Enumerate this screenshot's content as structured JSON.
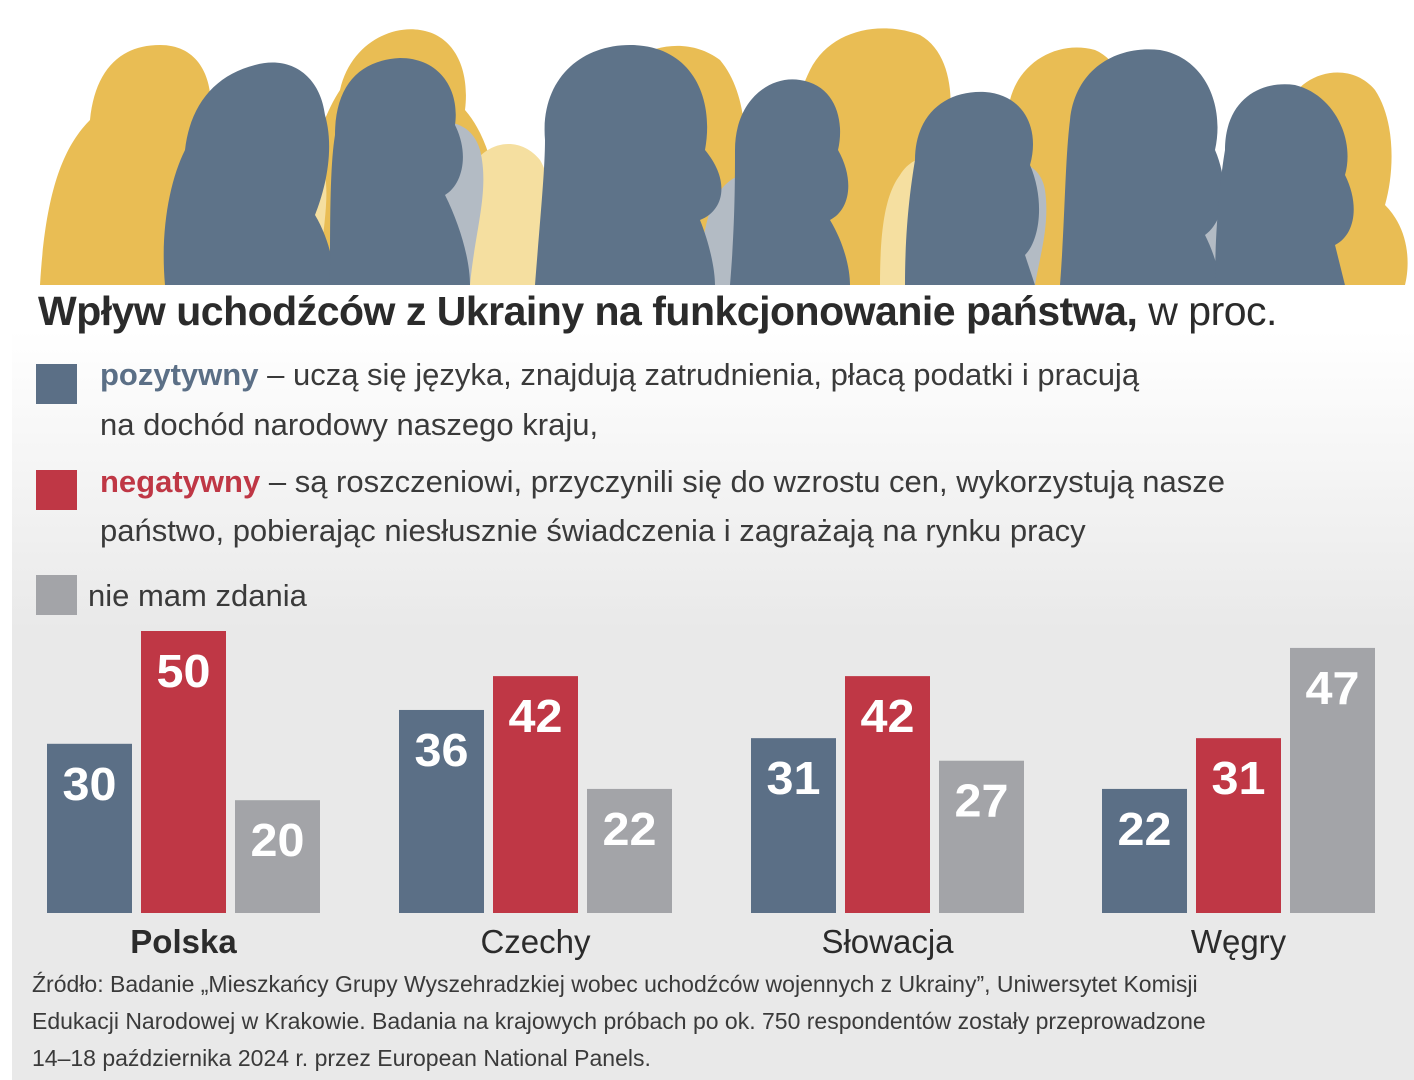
{
  "title": {
    "bold": "Wpływ uchodźców z Ukrainy na funkcjonowanie państwa,",
    "unit": "w proc."
  },
  "legend": [
    {
      "key": "pozytywny",
      "color": "#5b6f86",
      "text_line1": "– uczą się języka, znajdują zatrudnienia, płacą podatki i pracują",
      "text_line2": "na dochód narodowy naszego kraju,"
    },
    {
      "key": "negatywny",
      "color": "#bf3745",
      "text_line1": "– są roszczeniowi, przyczynili się do wzrostu cen, wykorzystują nasze",
      "text_line2": "państwo, pobierając niesłusznie świadczenia i zagrażają na rynku pracy"
    },
    {
      "key": "nie mam zdania",
      "color": "#a3a4a8"
    }
  ],
  "chart_data": {
    "type": "bar",
    "categories": [
      "Polska",
      "Czechy",
      "Słowacja",
      "Węgry"
    ],
    "series": [
      {
        "name": "pozytywny",
        "color": "#5b6f86",
        "values": [
          30,
          36,
          31,
          22
        ]
      },
      {
        "name": "negatywny",
        "color": "#bf3745",
        "values": [
          50,
          42,
          42,
          31
        ]
      },
      {
        "name": "nie mam zdania",
        "color": "#a3a4a8",
        "values": [
          20,
          22,
          27,
          47
        ]
      }
    ],
    "highlight_category": "Polska",
    "title": "Wpływ uchodźców z Ukrainy na funkcjonowanie państwa, w proc.",
    "xlabel": "",
    "ylabel": "",
    "ylim": [
      0,
      50
    ]
  },
  "source": {
    "line1": "Źródło: Badanie „Mieszkańcy Grupy Wyszehradzkiej wobec uchodźców wojennych z Ukrainy”, Uniwersytet Komisji",
    "line2": "Edukacji Narodowej w Krakowie. Badania na krajowych próbach po ok. 750 respondentów zostały przeprowadzone",
    "line3": "14–18 października 2024 r. przez European National Panels."
  },
  "decor": {
    "silhouette_colors": [
      "#e9bd54",
      "#5e7389",
      "#b3bbc4",
      "#f5dfa0"
    ]
  }
}
